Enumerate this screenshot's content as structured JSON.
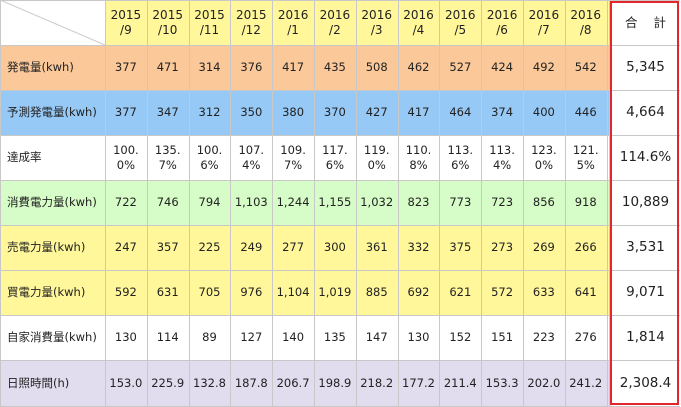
{
  "colors": {
    "header_bg": "#fff799",
    "generation_bg": "#fbc89a",
    "forecast_bg": "#96c9f6",
    "consumption_bg": "#d6fcc7",
    "sold_bg": "#fff799",
    "bought_bg": "#fff799",
    "self_bg": "#ffffff",
    "sunshine_bg": "#e1dcee",
    "total_bg": "#ffffff",
    "total_frame": "#e3262b",
    "grid_line": "#c8c8c8"
  },
  "table": {
    "months": [
      "2015\n/9",
      "2015\n/10",
      "2015\n/11",
      "2015\n/12",
      "2016\n/1",
      "2016\n/2",
      "2016\n/3",
      "2016\n/4",
      "2016\n/5",
      "2016\n/6",
      "2016\n/7",
      "2016\n/8"
    ],
    "total_header": "合 計",
    "rows": [
      {
        "key": "generation",
        "label": "発電量(kwh)",
        "values": [
          "377",
          "471",
          "314",
          "376",
          "417",
          "435",
          "508",
          "462",
          "527",
          "424",
          "492",
          "542"
        ],
        "total": "5,345"
      },
      {
        "key": "forecast",
        "label": "予測発電量(kwh)",
        "values": [
          "377",
          "347",
          "312",
          "350",
          "380",
          "370",
          "427",
          "417",
          "464",
          "374",
          "400",
          "446"
        ],
        "total": "4,664"
      },
      {
        "key": "achievement",
        "label": "達成率",
        "values": [
          "100.\n0%",
          "135.\n7%",
          "100.\n6%",
          "107.\n4%",
          "109.\n7%",
          "117.\n6%",
          "119.\n0%",
          "110.\n8%",
          "113.\n6%",
          "113.\n4%",
          "123.\n0%",
          "121.\n5%"
        ],
        "total": "114.6%"
      },
      {
        "key": "consumption",
        "label": "消費電力量(kwh)",
        "values": [
          "722",
          "746",
          "794",
          "1,103",
          "1,244",
          "1,155",
          "1,032",
          "823",
          "773",
          "723",
          "856",
          "918"
        ],
        "total": "10,889"
      },
      {
        "key": "sold",
        "label": "売電力量(kwh)",
        "values": [
          "247",
          "357",
          "225",
          "249",
          "277",
          "300",
          "361",
          "332",
          "375",
          "273",
          "269",
          "266"
        ],
        "total": "3,531"
      },
      {
        "key": "bought",
        "label": "買電力量(kwh)",
        "values": [
          "592",
          "631",
          "705",
          "976",
          "1,104",
          "1,019",
          "885",
          "692",
          "621",
          "572",
          "633",
          "641"
        ],
        "total": "9,071"
      },
      {
        "key": "self",
        "label": "自家消費量(kwh)",
        "values": [
          "130",
          "114",
          "89",
          "127",
          "140",
          "135",
          "147",
          "130",
          "152",
          "151",
          "223",
          "276"
        ],
        "total": "1,814"
      },
      {
        "key": "sunshine",
        "label": "日照時間(h)",
        "values": [
          "153.0",
          "225.9",
          "132.8",
          "187.8",
          "206.7",
          "198.9",
          "218.2",
          "177.2",
          "211.4",
          "153.3",
          "202.0",
          "241.2"
        ],
        "total": "2,308.4"
      }
    ]
  }
}
